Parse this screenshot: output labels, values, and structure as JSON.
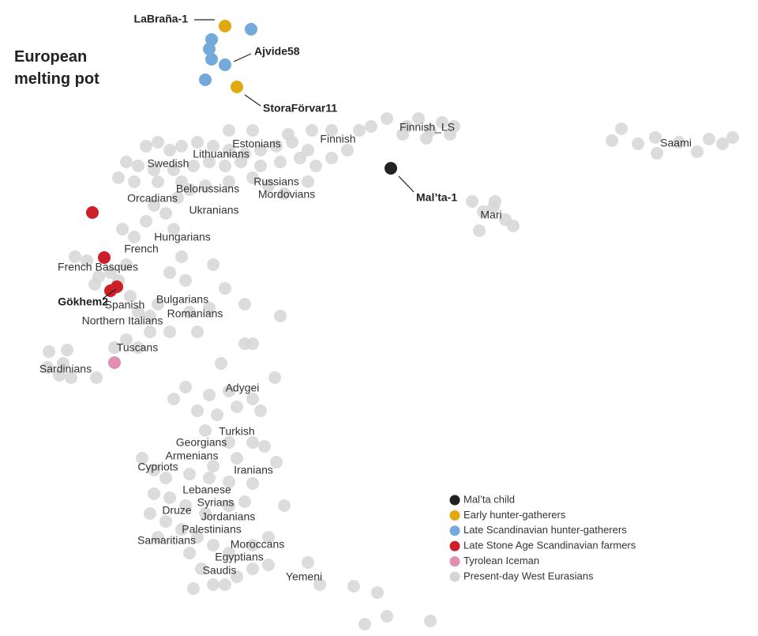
{
  "chart_data": {
    "type": "scatter",
    "title": "European melting pot",
    "xlim": [
      0,
      96
    ],
    "ylim": [
      80.5,
      0
    ],
    "series": [
      {
        "name": "Mal’ta child",
        "color": "#222222",
        "x": [
          49.5
        ],
        "y": [
          21.3
        ]
      },
      {
        "name": "Early hunter-gatherers",
        "color": "#e0a912",
        "x": [
          28.5,
          30
        ],
        "y": [
          3.3,
          11
        ]
      },
      {
        "name": "Late Scandinavian hunter-gatherers",
        "color": "#74a9dc",
        "x": [
          31.8,
          26.8,
          26.5,
          26.8,
          28.5,
          26
        ],
        "y": [
          3.7,
          5,
          6.2,
          7.5,
          8.2,
          10.1
        ]
      },
      {
        "name": "Late Stone Age Scandinavian farmers",
        "color": "#cc1f27",
        "x": [
          11.7,
          13.2,
          14,
          14.8
        ],
        "y": [
          26.9,
          32.6,
          36.8,
          36.3
        ]
      },
      {
        "name": "Tyrolean Iceman",
        "color": "#e08fb2",
        "x": [
          14.5
        ],
        "y": [
          45.9
        ]
      },
      {
        "name": "Present-day West Eurasians",
        "color": "#d6d6d6",
        "x": [
          18.5,
          20,
          21.5,
          23,
          25,
          27,
          29,
          31,
          33,
          35,
          37,
          39,
          16,
          17.5,
          19.5,
          22,
          24.5,
          26.5,
          28.5,
          30.5,
          33,
          35.5,
          38,
          40,
          42,
          44,
          45.5,
          47,
          49,
          42,
          39.5,
          36.5,
          29,
          32,
          15,
          17,
          20,
          23,
          26,
          29,
          32,
          34,
          36,
          39,
          51.5,
          53,
          54.5,
          56,
          57.5,
          51,
          54,
          57,
          77.5,
          78.7,
          80.8,
          83,
          83.2,
          86,
          88.3,
          89.8,
          91.5,
          92.8,
          59.8,
          61.2,
          62.7,
          64,
          65,
          60.7,
          62.5,
          9.5,
          11,
          12.5,
          14,
          16,
          12,
          15,
          16.5,
          17.5,
          19,
          15.5,
          17,
          18.5,
          19.5,
          21,
          22.5,
          24,
          22,
          23,
          21.5,
          23.5,
          20,
          21.5,
          19,
          16,
          14.5,
          17.5,
          27,
          28.5,
          31,
          35.5,
          31,
          32,
          28,
          25,
          26.5,
          24,
          6.2,
          8.5,
          6,
          7.5,
          9,
          12.2,
          8,
          23.5,
          22,
          26.5,
          29,
          32,
          34.8,
          25,
          27.5,
          30,
          33,
          26,
          29,
          32,
          33.5,
          35,
          30,
          27,
          18,
          19.5,
          21,
          24,
          26.5,
          29,
          32,
          19.5,
          21.5,
          23.5,
          26,
          29,
          31,
          19,
          21,
          23,
          25,
          27,
          29,
          32,
          34,
          36,
          20,
          24,
          25.5,
          27,
          24.5,
          28.5,
          30,
          32,
          34,
          39,
          40.5,
          44.8,
          47.8,
          46.2,
          49,
          54.5
        ],
        "y": [
          18.5,
          18,
          19,
          18.5,
          18,
          18.5,
          19,
          19.5,
          19,
          18.5,
          18,
          19,
          20.5,
          21,
          21.5,
          21.5,
          21,
          20.5,
          21,
          20.5,
          21,
          20.5,
          20,
          21,
          20,
          19,
          16.5,
          16,
          15,
          16.5,
          16.5,
          17,
          16.5,
          16.5,
          22.5,
          23,
          23,
          23,
          23.5,
          23,
          22.5,
          23.5,
          24.5,
          23,
          16,
          15,
          16.5,
          15.5,
          16,
          17,
          17.5,
          17,
          17.8,
          16.3,
          18.2,
          17.4,
          19.4,
          18,
          19.2,
          17.6,
          18.2,
          17.4,
          25.5,
          26.8,
          25.5,
          27.8,
          28.6,
          29.2,
          26.2,
          32.5,
          33,
          35,
          34.5,
          33.5,
          36,
          35.5,
          37.5,
          39.5,
          40,
          29,
          30,
          28,
          26,
          27,
          25,
          24,
          29,
          32.5,
          34.5,
          35.5,
          38.5,
          42,
          42,
          43,
          44,
          44,
          33.5,
          36.5,
          38.5,
          40,
          43.5,
          43.5,
          46,
          42,
          39,
          39.5,
          44.5,
          44.3,
          46.5,
          47.5,
          47.8,
          47.8,
          46,
          49,
          50.5,
          50,
          49.5,
          50.5,
          47.8,
          52,
          52.5,
          51.5,
          52,
          54.5,
          56,
          56,
          56.5,
          58.5,
          58,
          59,
          58,
          59.5,
          60.5,
          60,
          60.5,
          61,
          61.2,
          62.5,
          63,
          64,
          65,
          64,
          63.5,
          65,
          66,
          67,
          68,
          69,
          70,
          69,
          68,
          64,
          68,
          70,
          72,
          74,
          74.5,
          74,
          73,
          72,
          71.5,
          71.2,
          74,
          74.2,
          75,
          79,
          78,
          78.6
        ]
      }
    ],
    "labels": [
      {
        "text": "Finnish_LS",
        "x": 54.1,
        "y": 16.2
      },
      {
        "text": "Saami",
        "x": 85.6,
        "y": 18.2
      },
      {
        "text": "Estonians",
        "x": 32.5,
        "y": 18.3
      },
      {
        "text": "Finnish",
        "x": 42.8,
        "y": 17.7
      },
      {
        "text": "Swedish",
        "x": 21.3,
        "y": 20.8
      },
      {
        "text": "Lithuanians",
        "x": 28,
        "y": 19.6
      },
      {
        "text": "Russians",
        "x": 35,
        "y": 23.1
      },
      {
        "text": "Mordovians",
        "x": 36.3,
        "y": 24.7
      },
      {
        "text": "Belorussians",
        "x": 26.3,
        "y": 24
      },
      {
        "text": "Orcadians",
        "x": 19.3,
        "y": 25.2
      },
      {
        "text": "Ukranians",
        "x": 27.1,
        "y": 26.7
      },
      {
        "text": "Mari",
        "x": 62.2,
        "y": 27.3
      },
      {
        "text": "Hungarians",
        "x": 23.1,
        "y": 30.1
      },
      {
        "text": "French",
        "x": 17.9,
        "y": 31.6
      },
      {
        "text": "French Basques",
        "x": 12.4,
        "y": 33.9
      },
      {
        "text": "Spanish",
        "x": 15.8,
        "y": 38.7
      },
      {
        "text": "Bulgarians",
        "x": 23.1,
        "y": 38
      },
      {
        "text": "Romanians",
        "x": 24.7,
        "y": 39.8
      },
      {
        "text": "Northern Italians",
        "x": 15.5,
        "y": 40.7
      },
      {
        "text": "Tuscans",
        "x": 17.4,
        "y": 44.1
      },
      {
        "text": "Sardinians",
        "x": 8.3,
        "y": 46.8
      },
      {
        "text": "Adygei",
        "x": 30.7,
        "y": 49.2
      },
      {
        "text": "Turkish",
        "x": 30,
        "y": 54.7
      },
      {
        "text": "Georgians",
        "x": 25.5,
        "y": 56.1
      },
      {
        "text": "Armenians",
        "x": 24.3,
        "y": 57.8
      },
      {
        "text": "Cypriots",
        "x": 20,
        "y": 59.2
      },
      {
        "text": "Iranians",
        "x": 32.1,
        "y": 59.6
      },
      {
        "text": "Lebanese",
        "x": 26.2,
        "y": 62.1
      },
      {
        "text": "Syrians",
        "x": 27.3,
        "y": 63.7
      },
      {
        "text": "Druze",
        "x": 22.4,
        "y": 64.7
      },
      {
        "text": "Jordanians",
        "x": 28.9,
        "y": 65.5
      },
      {
        "text": "Palestinians",
        "x": 26.8,
        "y": 67.1
      },
      {
        "text": "Samaritians",
        "x": 21.1,
        "y": 68.5
      },
      {
        "text": "Moroccans",
        "x": 32.6,
        "y": 69
      },
      {
        "text": "Egyptians",
        "x": 30.3,
        "y": 70.6
      },
      {
        "text": "Saudis",
        "x": 27.8,
        "y": 72.3
      },
      {
        "text": "Yemeni",
        "x": 38.5,
        "y": 73.1
      }
    ],
    "annotations": [
      {
        "text": "LaBraña-1",
        "x": 28.5,
        "y": 3.3
      },
      {
        "text": "Ajvide58",
        "x": 28.5,
        "y": 8.2
      },
      {
        "text": "StoraFörvar11",
        "x": 30,
        "y": 11
      },
      {
        "text": "Mal’ta-1",
        "x": 49.5,
        "y": 21.3
      },
      {
        "text": "Gökhem2",
        "x": 14,
        "y": 36.8
      }
    ]
  }
}
